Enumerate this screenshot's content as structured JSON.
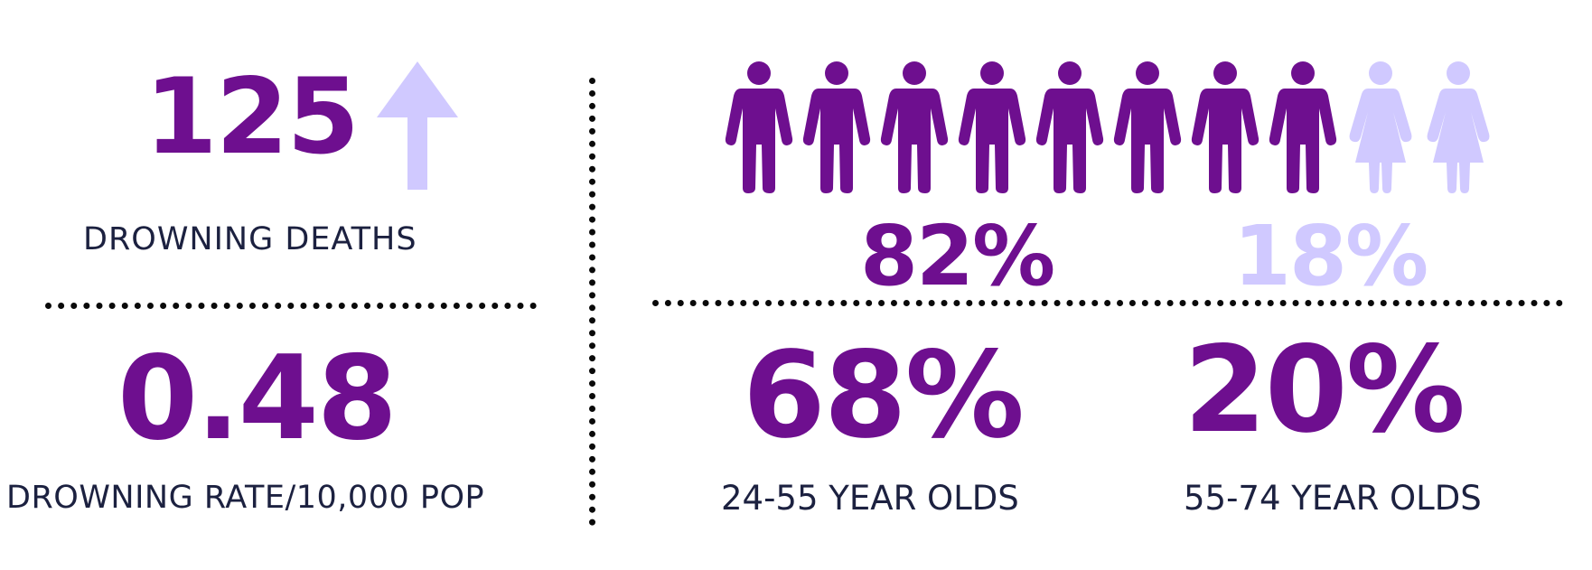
{
  "colors": {
    "primary_purple": "#6e0f8f",
    "light_lavender": "#d0c9ff",
    "label_navy": "#1c2140",
    "divider": "#0a0a0a"
  },
  "deaths": {
    "value": "125",
    "trend_icon": "up-arrow-icon",
    "label": "DROWNING DEATHS"
  },
  "rate": {
    "value": "0.48",
    "label": "DROWNING RATE/10,000 POP"
  },
  "gender": {
    "icons_total": 10,
    "male_icons": 8,
    "female_icons": 2,
    "male_icon": "male-person-icon",
    "female_icon": "female-person-icon",
    "male_percent": "82%",
    "female_percent": "18%"
  },
  "age_groups": [
    {
      "value": "68%",
      "label": "24-55 YEAR OLDS"
    },
    {
      "value": "20%",
      "label": "55-74 YEAR OLDS"
    }
  ]
}
